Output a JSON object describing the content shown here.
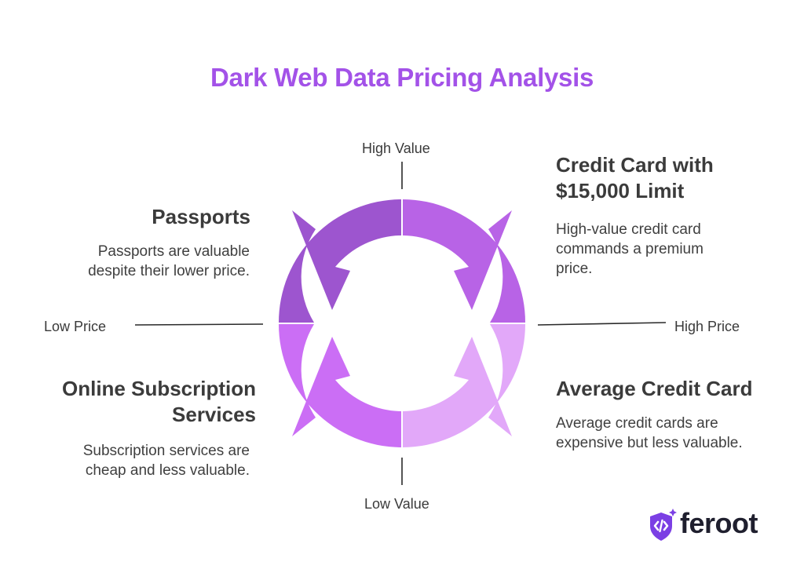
{
  "title": "Dark Web Data Pricing Analysis",
  "axes": {
    "top": "High Value",
    "bottom": "Low Value",
    "left": "Low Price",
    "right": "High Price"
  },
  "quadrants": {
    "top_left": {
      "title_lines": [
        "Passports"
      ],
      "desc_lines": [
        "Passports are valuable",
        "despite their lower price."
      ],
      "color": "#9d55cf"
    },
    "top_right": {
      "title_lines": [
        "Credit Card with",
        "$15,000 Limit"
      ],
      "desc_lines": [
        "High-value credit card",
        "commands a premium",
        "price."
      ],
      "color": "#b863e6"
    },
    "bottom_left": {
      "title_lines": [
        "Online Subscription",
        "Services"
      ],
      "desc_lines": [
        "Subscription services are",
        "cheap and less valuable."
      ],
      "color": "#cb6ef5"
    },
    "bottom_right": {
      "title_lines": [
        "Average Credit Card"
      ],
      "desc_lines": [
        "Average credit cards are",
        "expensive but less valuable."
      ],
      "color": "#e2a8f9"
    }
  },
  "logo": {
    "text": "feroot",
    "icon": "shield-code-icon",
    "color": "#7b3fe4"
  }
}
